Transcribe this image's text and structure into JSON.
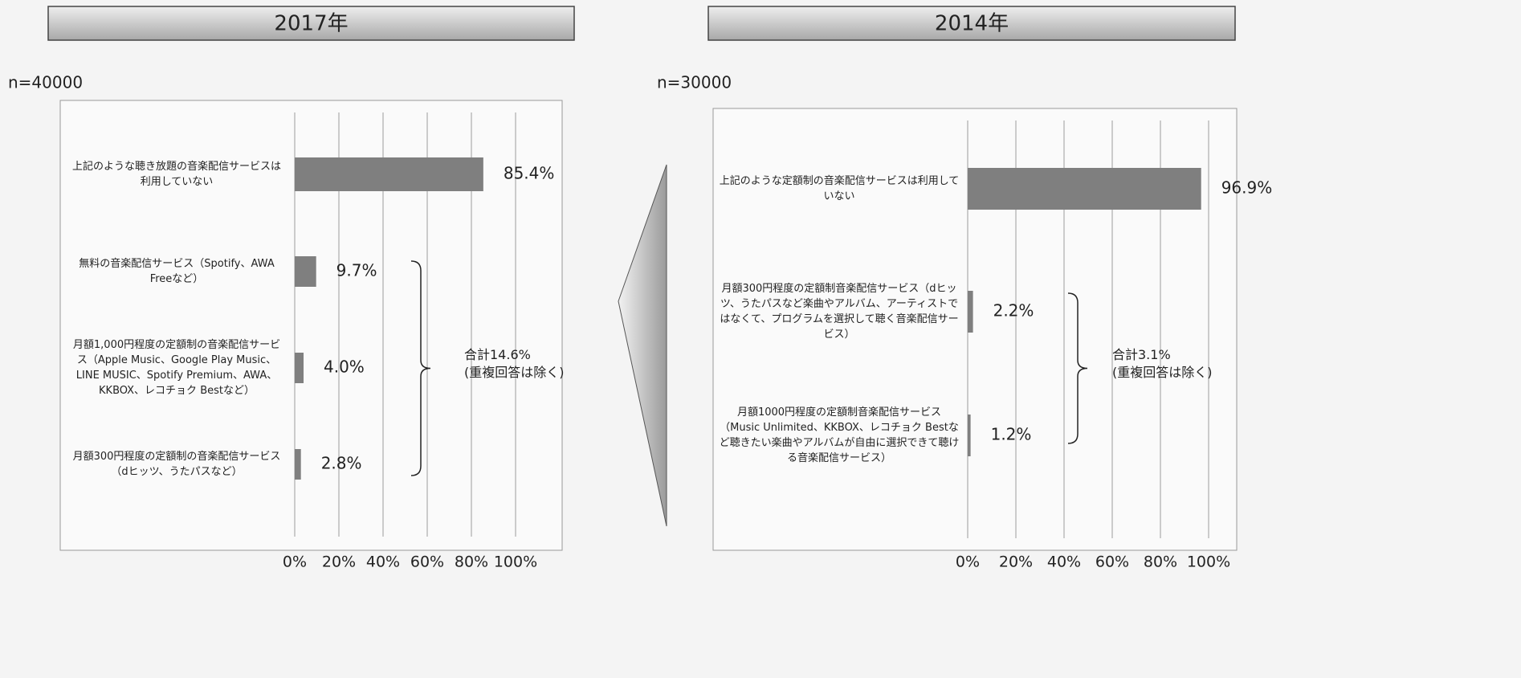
{
  "chart_data": [
    {
      "type": "bar",
      "orientation": "horizontal",
      "title": "2017年",
      "subtitle": "n=40000",
      "categories": [
        "上記のような聴き放題の音楽配信サービスは利用していない",
        "無料の音楽配信サービス（Spotify、AWA Freeなど）",
        "月額1,000円程度の定額制の音楽配信サービス（Apple Music、Google Play Music、LINE MUSIC、Spotify Premium、AWA、KKBOX、レコチョク Bestなど）",
        "月額300円程度の定額制の音楽配信サービス（dヒッツ、うたパスなど）"
      ],
      "values": [
        85.4,
        9.7,
        4.0,
        2.8
      ],
      "value_labels": [
        "85.4%",
        "9.7%",
        "4.0%",
        "2.8%"
      ],
      "color": "#7f7f7f",
      "xlim": [
        0,
        100
      ],
      "xticks": [
        {
          "value": 0,
          "label": "0%"
        },
        {
          "value": 20,
          "label": "20%"
        },
        {
          "value": 40,
          "label": "40%"
        },
        {
          "value": 60,
          "label": "60%"
        },
        {
          "value": 80,
          "label": "80%"
        },
        {
          "value": 100,
          "label": "100%"
        }
      ],
      "grid": true,
      "annotations": [
        "合計14.6%",
        "(重複回答は除く)"
      ]
    },
    {
      "type": "bar",
      "orientation": "horizontal",
      "title": "2014年",
      "subtitle": "n=30000",
      "categories": [
        "上記のような定額制の音楽配信サービスは利用していない",
        "月額300円程度の定額制音楽配信サービス（dヒッツ、うたパスなど楽曲やアルバム、アーティストではなくて、プログラムを選択して聴く音楽配信サービス）",
        "月額1000円程度の定額制音楽配信サービス（Music Unlimited、KKBOX、レコチョク Bestなど聴きたい楽曲やアルバムが自由に選択できて聴ける音楽配信サービス）"
      ],
      "values": [
        96.9,
        2.2,
        1.2
      ],
      "value_labels": [
        "96.9%",
        "2.2%",
        "1.2%"
      ],
      "color": "#7f7f7f",
      "xlim": [
        0,
        100
      ],
      "xticks": [
        {
          "value": 0,
          "label": "0%"
        },
        {
          "value": 20,
          "label": "20%"
        },
        {
          "value": 40,
          "label": "40%"
        },
        {
          "value": 60,
          "label": "60%"
        },
        {
          "value": 80,
          "label": "80%"
        },
        {
          "value": 100,
          "label": "100%"
        }
      ],
      "grid": true,
      "annotations": [
        "合計3.1%",
        "(重複回答は除く)"
      ]
    }
  ]
}
